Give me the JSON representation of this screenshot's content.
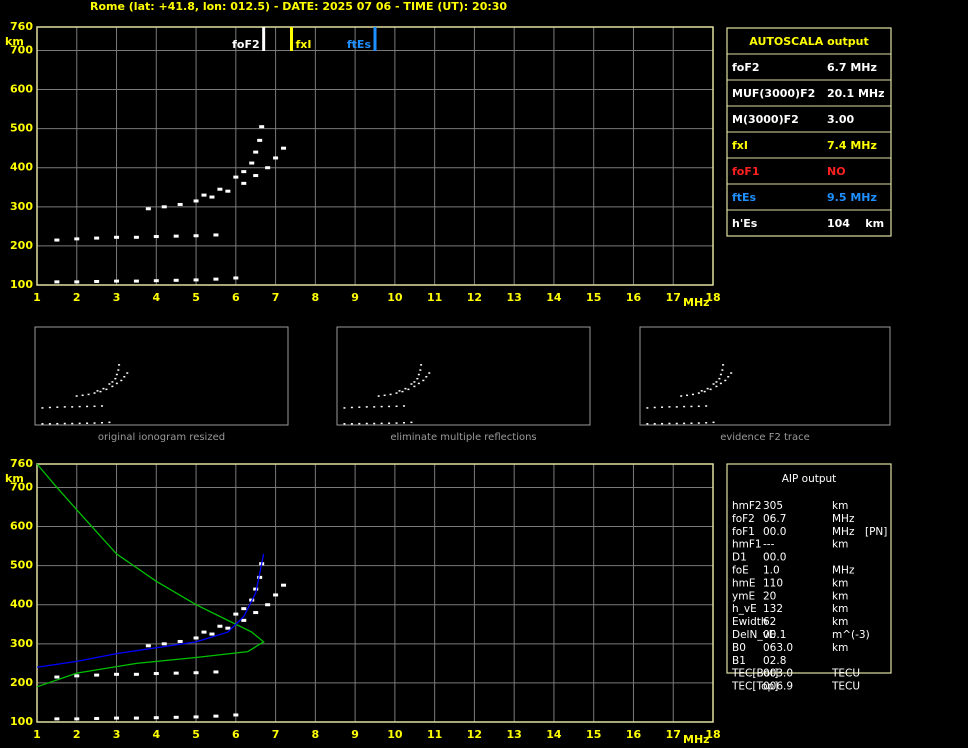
{
  "header": {
    "title": "Rome (lat: +41.8, lon: 012.5) - DATE: 2025 07 06 - TIME (UT): 20:30"
  },
  "chart_data": [
    {
      "type": "scatter",
      "x_label": "MHz",
      "y_label": "km",
      "xlim": [
        1,
        18
      ],
      "ylim": [
        100,
        760
      ],
      "xticks": [
        1,
        2,
        3,
        4,
        5,
        6,
        7,
        8,
        9,
        10,
        11,
        12,
        13,
        14,
        15,
        16,
        17,
        18
      ],
      "yticks": [
        100,
        200,
        300,
        400,
        500,
        600,
        700,
        760
      ],
      "grid": true,
      "markers": [
        {
          "label": "foF2",
          "x": 6.7,
          "color": "#ffffff"
        },
        {
          "label": "fxI",
          "x": 7.4,
          "color": "#ffff00"
        },
        {
          "label": "ftEs",
          "x": 9.5,
          "color": "#1e90ff"
        }
      ],
      "series": [
        {
          "type": "dots",
          "color": "#ffffff",
          "x": [
            1.5,
            2.0,
            2.5,
            3.0,
            3.5,
            4.0,
            4.5,
            5.0,
            5.5,
            6.0
          ],
          "values": [
            108,
            108,
            109,
            110,
            110,
            111,
            112,
            113,
            115,
            118
          ]
        },
        {
          "type": "dots",
          "color": "#ffffff",
          "x": [
            1.5,
            2.0,
            2.5,
            3.0,
            3.5,
            4.0,
            4.5,
            5.0,
            5.5
          ],
          "values": [
            215,
            218,
            220,
            222,
            222,
            224,
            225,
            226,
            228
          ]
        },
        {
          "type": "dots",
          "color": "#ffffff",
          "x": [
            3.8,
            4.2,
            4.6,
            5.0,
            5.4,
            5.8,
            6.2,
            6.5,
            6.8,
            7.0,
            7.2
          ],
          "values": [
            295,
            300,
            306,
            315,
            325,
            340,
            360,
            380,
            400,
            425,
            450
          ]
        },
        {
          "type": "dots",
          "color": "#ffffff",
          "x": [
            5.2,
            5.6,
            6.0,
            6.2,
            6.4,
            6.5,
            6.6,
            6.65
          ],
          "values": [
            330,
            345,
            376,
            390,
            412,
            440,
            470,
            505
          ]
        }
      ]
    },
    {
      "type": "scatter",
      "x_label": "MHz",
      "y_label": "km",
      "xlim": [
        1,
        18
      ],
      "ylim": [
        100,
        760
      ],
      "xticks": [
        1,
        2,
        3,
        4,
        5,
        6,
        7,
        8,
        9,
        10,
        11,
        12,
        13,
        14,
        15,
        16,
        17,
        18
      ],
      "yticks": [
        100,
        200,
        300,
        400,
        500,
        600,
        700,
        760
      ],
      "grid": true,
      "series": [
        {
          "type": "dots",
          "color": "#ffffff",
          "x": [
            1.5,
            2.0,
            2.5,
            3.0,
            3.5,
            4.0,
            4.5,
            5.0,
            5.5,
            6.0
          ],
          "values": [
            108,
            108,
            109,
            110,
            110,
            111,
            112,
            113,
            115,
            118
          ]
        },
        {
          "type": "dots",
          "color": "#ffffff",
          "x": [
            1.5,
            2.0,
            2.5,
            3.0,
            3.5,
            4.0,
            4.5,
            5.0,
            5.5
          ],
          "values": [
            215,
            218,
            220,
            222,
            222,
            224,
            225,
            226,
            228
          ]
        },
        {
          "type": "dots",
          "color": "#ffffff",
          "x": [
            3.8,
            4.2,
            4.6,
            5.0,
            5.4,
            5.8,
            6.2,
            6.5,
            6.8,
            7.0,
            7.2
          ],
          "values": [
            295,
            300,
            306,
            315,
            325,
            340,
            360,
            380,
            400,
            425,
            450
          ]
        },
        {
          "type": "dots",
          "color": "#ffffff",
          "x": [
            5.2,
            5.6,
            6.0,
            6.2,
            6.4,
            6.5,
            6.6,
            6.65
          ],
          "values": [
            330,
            345,
            376,
            390,
            412,
            440,
            470,
            505
          ]
        },
        {
          "type": "line",
          "color": "#00c000",
          "x": [
            1,
            1.5,
            2.2,
            3,
            4,
            5,
            5.8,
            6.4,
            6.7,
            6.3,
            5,
            3.5,
            2,
            1
          ],
          "values": [
            760,
            700,
            620,
            530,
            460,
            400,
            360,
            330,
            305,
            280,
            265,
            250,
            225,
            190
          ]
        },
        {
          "type": "line",
          "color": "#0000ff",
          "x": [
            1,
            2,
            3,
            4,
            5,
            5.8,
            6.2,
            6.5,
            6.7
          ],
          "values": [
            240,
            255,
            275,
            290,
            305,
            330,
            370,
            430,
            530
          ]
        }
      ]
    }
  ],
  "thumbnails": [
    {
      "caption": "original ionogram resized"
    },
    {
      "caption": "eliminate multiple reflections"
    },
    {
      "caption": "evidence F2 trace"
    }
  ],
  "autoscala": {
    "title": "AUTOSCALA output",
    "rows": [
      {
        "label": "foF2",
        "value": "6.7 MHz",
        "color": "#ffffff"
      },
      {
        "label": "MUF(3000)F2",
        "value": "20.1 MHz",
        "color": "#ffffff"
      },
      {
        "label": "M(3000)F2",
        "value": "3.00",
        "color": "#ffffff"
      },
      {
        "label": "fxI",
        "value": "7.4 MHz",
        "color": "#ffff00"
      },
      {
        "label": "foF1",
        "value": "NO",
        "color": "#ff2020"
      },
      {
        "label": "ftEs",
        "value": "9.5 MHz",
        "color": "#1e90ff"
      },
      {
        "label": "h'Es",
        "value": "104    km",
        "color": "#ffffff"
      }
    ]
  },
  "aip": {
    "title": "AIP output",
    "rows": [
      [
        "hmF2",
        "305",
        "km"
      ],
      [
        "foF2",
        "06.7",
        "MHz"
      ],
      [
        "foF1",
        "00.0",
        "MHz",
        "[PN]"
      ],
      [
        "hmF1",
        "---",
        "km"
      ],
      [
        "D1",
        "00.0"
      ],
      [
        "foE",
        "1.0",
        "MHz"
      ],
      [
        "hmE",
        "110",
        "km"
      ],
      [
        "ymE",
        "20",
        "km"
      ],
      [
        "h_vE",
        "132",
        "km"
      ],
      [
        "Ewidth",
        "62",
        "km"
      ],
      [
        "DelN_vE",
        "00.1",
        "m^(-3)"
      ],
      [
        "B0",
        "063.0",
        "km"
      ],
      [
        "B1",
        "02.8"
      ],
      [
        "TEC[Bot]",
        "003.0",
        "TECU"
      ],
      [
        "TEC[Top]",
        "006.9",
        "TECU"
      ]
    ]
  }
}
